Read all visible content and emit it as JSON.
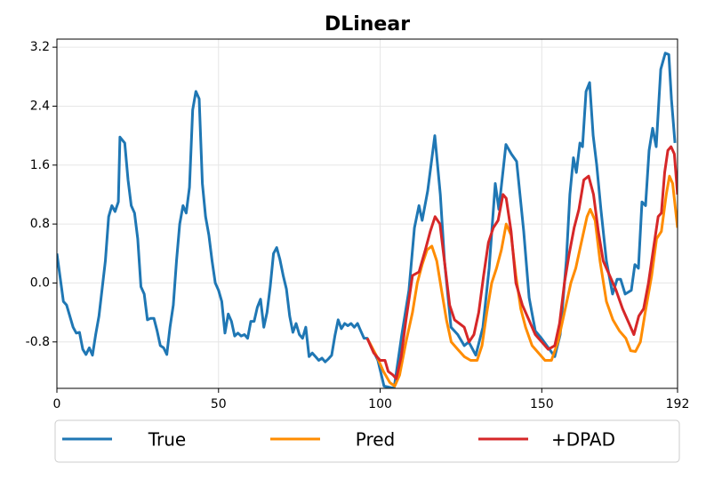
{
  "chart_data": {
    "type": "line",
    "title": "DLinear",
    "xlim": [
      0,
      192
    ],
    "xticks": [
      0,
      50,
      100,
      150,
      192
    ],
    "ylim": [
      -1.43,
      3.31
    ],
    "yticks": [
      -0.8,
      {
        "value": 0,
        "label": "0.0"
      },
      0.8,
      1.6,
      2.4,
      3.2
    ],
    "grid": true,
    "legend": "bottom",
    "series": [
      {
        "name": "True",
        "color": "#1f77b4",
        "x": [
          0,
          2,
          3,
          5,
          6,
          7,
          8,
          9,
          10,
          11,
          12,
          13,
          15,
          16,
          17,
          18,
          19,
          19.5,
          21,
          22,
          23,
          24,
          25,
          26,
          27,
          28,
          29,
          30,
          31,
          32,
          33,
          34,
          35,
          36,
          37,
          38,
          39,
          40,
          41,
          42,
          43,
          44,
          45,
          46,
          47,
          48,
          49,
          50,
          51,
          52,
          53,
          54,
          55,
          56,
          57,
          58,
          59,
          60,
          61,
          62,
          63,
          64,
          65,
          66,
          67,
          68,
          69,
          70,
          71,
          72,
          73,
          74,
          75,
          76,
          77,
          78,
          79,
          80,
          81,
          82,
          83,
          84,
          85,
          86,
          87,
          88,
          89,
          90,
          91,
          92,
          93,
          94,
          95,
          96,
          99.3,
          101.2,
          104.3,
          106.7,
          108.9,
          110.6,
          112,
          113,
          114.7,
          116.9,
          118.6,
          119.9,
          121.9,
          124,
          126,
          127.4,
          129.6,
          131.8,
          133.7,
          135.6,
          136.7,
          138.9,
          140.6,
          142.2,
          144.4,
          146.1,
          148,
          149.9,
          152.4,
          154,
          155.7,
          157.6,
          158.7,
          159.8,
          160.7,
          161.8,
          162.6,
          163.7,
          164.8,
          165.9,
          167,
          168.3,
          170,
          171.9,
          173.3,
          174.4,
          175.8,
          177.7,
          178.8,
          179.9,
          181,
          182.1,
          183.2,
          184.3,
          185.4,
          186.8,
          188.2,
          189.3,
          190.1,
          191.2
        ],
        "values": [
          0.4,
          -0.25,
          -0.3,
          -0.6,
          -0.68,
          -0.67,
          -0.9,
          -0.97,
          -0.88,
          -0.98,
          -0.7,
          -0.45,
          0.3,
          0.9,
          1.05,
          0.97,
          1.1,
          1.98,
          1.9,
          1.4,
          1.05,
          0.95,
          0.6,
          -0.05,
          -0.15,
          -0.5,
          -0.48,
          -0.48,
          -0.65,
          -0.85,
          -0.88,
          -0.97,
          -0.6,
          -0.3,
          0.3,
          0.8,
          1.05,
          0.95,
          1.3,
          2.35,
          2.6,
          2.5,
          1.35,
          0.9,
          0.65,
          0.3,
          0.0,
          -0.1,
          -0.25,
          -0.68,
          -0.42,
          -0.52,
          -0.72,
          -0.68,
          -0.72,
          -0.7,
          -0.75,
          -0.52,
          -0.52,
          -0.33,
          -0.22,
          -0.6,
          -0.4,
          -0.05,
          0.4,
          0.48,
          0.32,
          0.1,
          -0.08,
          -0.45,
          -0.67,
          -0.55,
          -0.7,
          -0.75,
          -0.6,
          -1.0,
          -0.95,
          -1.0,
          -1.05,
          -1.02,
          -1.07,
          -1.03,
          -0.98,
          -0.72,
          -0.5,
          -0.62,
          -0.55,
          -0.58,
          -0.55,
          -0.6,
          -0.55,
          -0.65,
          -0.75,
          -0.75,
          -1.05,
          -1.4,
          -1.43,
          -0.7,
          -0.1,
          0.75,
          1.05,
          0.85,
          1.25,
          2.0,
          1.2,
          0.3,
          -0.6,
          -0.7,
          -0.85,
          -0.8,
          -0.98,
          -0.6,
          0.2,
          1.35,
          1.0,
          1.88,
          1.75,
          1.65,
          0.7,
          -0.2,
          -0.65,
          -0.75,
          -0.9,
          -1.0,
          -0.7,
          0.3,
          1.2,
          1.7,
          1.5,
          1.9,
          1.85,
          2.6,
          2.72,
          2.0,
          1.6,
          1.0,
          0.3,
          -0.15,
          0.05,
          0.05,
          -0.15,
          -0.1,
          0.25,
          0.2,
          1.1,
          1.05,
          1.8,
          2.1,
          1.85,
          2.9,
          3.12,
          3.1,
          2.5,
          1.9
        ]
      },
      {
        "name": "Pred",
        "color": "#ff8c00",
        "x": [
          96,
          99,
          101,
          103,
          104.5,
          106,
          108,
          110,
          111.5,
          113,
          114.5,
          116,
          117.5,
          119,
          120.5,
          122,
          124,
          126,
          128,
          130,
          131.5,
          133,
          134.5,
          136,
          137.5,
          139,
          140.5,
          142,
          143.5,
          145,
          147,
          149,
          151,
          153,
          155,
          157,
          159,
          160.5,
          162,
          164,
          165,
          166.5,
          168,
          170,
          172,
          174,
          176,
          177.5,
          179,
          180.5,
          182,
          184,
          185.5,
          187,
          188.5,
          189.5,
          190.5,
          192
        ],
        "values": [
          -0.75,
          -1.0,
          -1.2,
          -1.35,
          -1.4,
          -1.25,
          -0.8,
          -0.4,
          0.0,
          0.25,
          0.45,
          0.5,
          0.3,
          -0.1,
          -0.5,
          -0.8,
          -0.9,
          -1.0,
          -1.05,
          -1.05,
          -0.85,
          -0.4,
          0.0,
          0.2,
          0.45,
          0.8,
          0.65,
          0.1,
          -0.35,
          -0.6,
          -0.85,
          -0.95,
          -1.05,
          -1.05,
          -0.8,
          -0.4,
          0.0,
          0.2,
          0.5,
          0.9,
          1.0,
          0.85,
          0.3,
          -0.25,
          -0.5,
          -0.65,
          -0.75,
          -0.92,
          -0.93,
          -0.8,
          -0.4,
          0.1,
          0.6,
          0.7,
          1.2,
          1.45,
          1.35,
          0.75
        ]
      },
      {
        "name": "+DPAD",
        "color": "#d62728",
        "x": [
          96,
          98,
          100,
          101.5,
          102.5,
          104,
          105,
          106.5,
          108,
          110,
          112,
          114,
          115.5,
          117,
          118.5,
          120,
          121.5,
          123,
          124.5,
          126,
          127.5,
          129,
          130.5,
          132,
          133.5,
          135,
          136.5,
          138,
          139,
          140.5,
          142,
          144,
          146,
          148,
          150,
          152,
          154,
          155.5,
          157,
          158.5,
          160,
          161.5,
          163,
          164.5,
          166,
          167.5,
          169,
          171,
          173,
          175,
          177,
          178.5,
          180,
          181.5,
          183,
          184.5,
          186,
          187,
          188,
          189,
          190,
          191,
          192
        ],
        "values": [
          -0.75,
          -0.95,
          -1.05,
          -1.05,
          -1.2,
          -1.25,
          -1.3,
          -1.0,
          -0.5,
          0.1,
          0.15,
          0.45,
          0.7,
          0.9,
          0.8,
          0.25,
          -0.3,
          -0.5,
          -0.55,
          -0.6,
          -0.8,
          -0.7,
          -0.4,
          0.1,
          0.55,
          0.75,
          0.85,
          1.2,
          1.15,
          0.7,
          0.0,
          -0.3,
          -0.5,
          -0.7,
          -0.8,
          -0.9,
          -0.85,
          -0.55,
          0.0,
          0.4,
          0.75,
          1.0,
          1.4,
          1.45,
          1.2,
          0.7,
          0.3,
          0.1,
          -0.1,
          -0.35,
          -0.55,
          -0.7,
          -0.45,
          -0.35,
          0.0,
          0.45,
          0.9,
          0.95,
          1.5,
          1.8,
          1.85,
          1.75,
          1.2
        ]
      }
    ]
  }
}
